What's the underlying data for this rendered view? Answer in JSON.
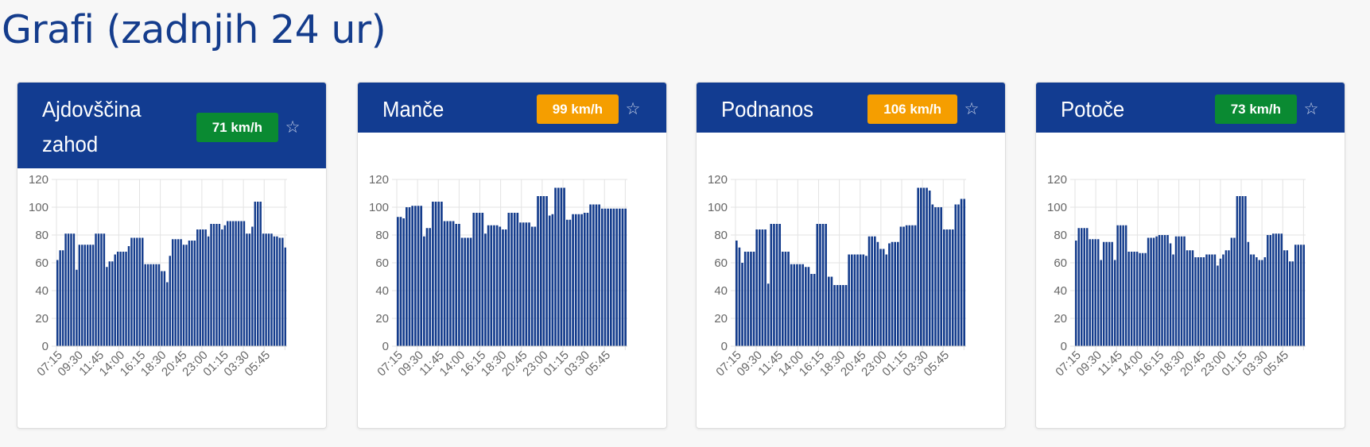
{
  "page": {
    "title": "Grafi (zadnjih 24 ur)"
  },
  "colors": {
    "header": "#123c91",
    "bar": "#143c8c",
    "badge_green": "#0a8a32",
    "badge_orange": "#f59e00",
    "grid": "#e3e3e3",
    "tick": "#666666"
  },
  "icons": {
    "favorite": "star-outline-icon"
  },
  "cards": [
    {
      "title": "Ajdovščina zahod",
      "badge": "71 km/h",
      "badge_status": "green",
      "chart_data": {
        "type": "bar",
        "x_ticks": [
          "07:15",
          "09:30",
          "11:45",
          "14:00",
          "16:15",
          "18:30",
          "20:45",
          "23:00",
          "01:15",
          "03:30",
          "05:45"
        ],
        "y_ticks": [
          "0",
          "20",
          "40",
          "60",
          "80",
          "100",
          "120"
        ],
        "ylim": [
          0,
          120
        ],
        "values": [
          62,
          69,
          69,
          81,
          81,
          81,
          81,
          55,
          73,
          73,
          73,
          73,
          73,
          73,
          81,
          81,
          81,
          81,
          57,
          61,
          61,
          66,
          68,
          68,
          68,
          68,
          72,
          78,
          78,
          78,
          78,
          78,
          59,
          59,
          59,
          59,
          59,
          59,
          54,
          54,
          46,
          65,
          77,
          77,
          77,
          77,
          73,
          73,
          76,
          76,
          76,
          84,
          84,
          84,
          84,
          79,
          88,
          88,
          88,
          88,
          84,
          87,
          90,
          90,
          90,
          90,
          90,
          90,
          90,
          81,
          81,
          86,
          104,
          104,
          104,
          81,
          81,
          81,
          81,
          79,
          79,
          78,
          78,
          71
        ]
      }
    },
    {
      "title": "Manče",
      "badge": "99 km/h",
      "badge_status": "orange",
      "chart_data": {
        "type": "bar",
        "x_ticks": [
          "07:15",
          "09:30",
          "11:45",
          "14:00",
          "16:15",
          "18:30",
          "20:45",
          "23:00",
          "01:15",
          "03:30",
          "05:45"
        ],
        "y_ticks": [
          "0",
          "20",
          "40",
          "60",
          "80",
          "100",
          "120"
        ],
        "ylim": [
          0,
          120
        ],
        "values": [
          93,
          93,
          92,
          100,
          100,
          101,
          101,
          101,
          101,
          79,
          85,
          85,
          104,
          104,
          104,
          104,
          90,
          90,
          90,
          90,
          88,
          88,
          78,
          78,
          78,
          78,
          96,
          96,
          96,
          96,
          81,
          87,
          87,
          87,
          87,
          86,
          84,
          84,
          96,
          96,
          96,
          96,
          89,
          89,
          89,
          89,
          86,
          86,
          108,
          108,
          108,
          108,
          94,
          95,
          114,
          114,
          114,
          114,
          91,
          91,
          95,
          95,
          95,
          95,
          96,
          96,
          102,
          102,
          102,
          102,
          99,
          99,
          99,
          99,
          99,
          99,
          99,
          99,
          99
        ]
      }
    },
    {
      "title": "Podnanos",
      "badge": "106 km/h",
      "badge_status": "orange",
      "chart_data": {
        "type": "bar",
        "x_ticks": [
          "07:15",
          "09:30",
          "11:45",
          "14:00",
          "16:15",
          "18:30",
          "20:45",
          "23:00",
          "01:15",
          "03:30",
          "05:45"
        ],
        "y_ticks": [
          "0",
          "20",
          "40",
          "60",
          "80",
          "100",
          "120"
        ],
        "ylim": [
          0,
          120
        ],
        "values": [
          76,
          71,
          60,
          68,
          68,
          68,
          68,
          84,
          84,
          84,
          84,
          45,
          88,
          88,
          88,
          88,
          68,
          68,
          68,
          59,
          59,
          59,
          59,
          59,
          57,
          57,
          52,
          52,
          88,
          88,
          88,
          88,
          50,
          50,
          44,
          44,
          44,
          44,
          44,
          66,
          66,
          66,
          66,
          66,
          66,
          65,
          79,
          79,
          79,
          75,
          70,
          70,
          66,
          74,
          75,
          75,
          75,
          86,
          86,
          87,
          87,
          87,
          87,
          114,
          114,
          114,
          114,
          112,
          102,
          100,
          100,
          100,
          84,
          84,
          84,
          84,
          102,
          102,
          106,
          106
        ]
      }
    },
    {
      "title": "Potoče",
      "badge": "73 km/h",
      "badge_status": "green",
      "chart_data": {
        "type": "bar",
        "x_ticks": [
          "07:15",
          "09:30",
          "11:45",
          "14:00",
          "16:15",
          "18:30",
          "20:45",
          "23:00",
          "01:15",
          "03:30",
          "05:45"
        ],
        "y_ticks": [
          "0",
          "20",
          "40",
          "60",
          "80",
          "100",
          "120"
        ],
        "ylim": [
          0,
          120
        ],
        "values": [
          76,
          85,
          85,
          85,
          85,
          77,
          77,
          77,
          77,
          62,
          75,
          75,
          75,
          75,
          62,
          87,
          87,
          87,
          87,
          68,
          68,
          68,
          68,
          67,
          67,
          67,
          78,
          78,
          78,
          79,
          80,
          80,
          80,
          80,
          74,
          66,
          79,
          79,
          79,
          79,
          69,
          69,
          69,
          64,
          64,
          64,
          64,
          66,
          66,
          66,
          66,
          58,
          63,
          66,
          69,
          69,
          78,
          78,
          108,
          108,
          108,
          108,
          75,
          66,
          66,
          64,
          62,
          62,
          64,
          80,
          80,
          81,
          81,
          81,
          81,
          69,
          69,
          61,
          61,
          73,
          73,
          73,
          73
        ]
      }
    }
  ]
}
